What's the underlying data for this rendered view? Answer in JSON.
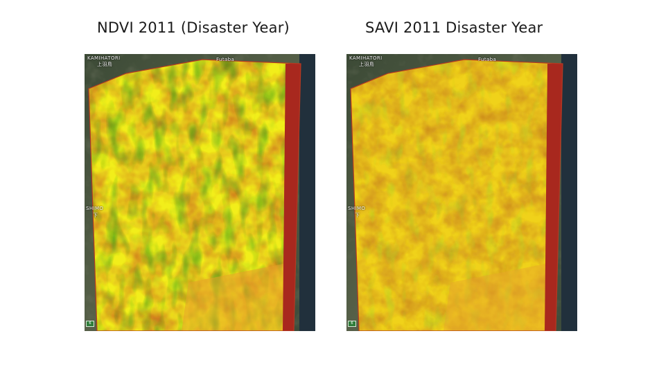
{
  "panels": {
    "left": {
      "title": "NDVI 2011 (Disaster Year)",
      "index": "NDVI",
      "labels": {
        "kamihatori": "KAMIHATORI",
        "kamihatori_jp": "上羽鳥",
        "futaba": "Futaba",
        "shimo": "SHIMO",
        "shimo_jp": "下"
      },
      "colors": {
        "high": "#1e8f1a",
        "mid": "#f2ee1a",
        "low": "#c8641e",
        "edge": "#a8281e"
      }
    },
    "right": {
      "title": "SAVI 2011 Disaster Year",
      "index": "SAVI",
      "labels": {
        "kamihatori": "KAMIHATORI",
        "kamihatori_jp": "上羽鳥",
        "futaba": "Futaba",
        "shimo": "SHIMO",
        "shimo_jp": "下"
      },
      "colors": {
        "high": "#9fd22a",
        "mid": "#f0d21a",
        "low": "#c8821e",
        "edge": "#a8281e"
      }
    }
  }
}
